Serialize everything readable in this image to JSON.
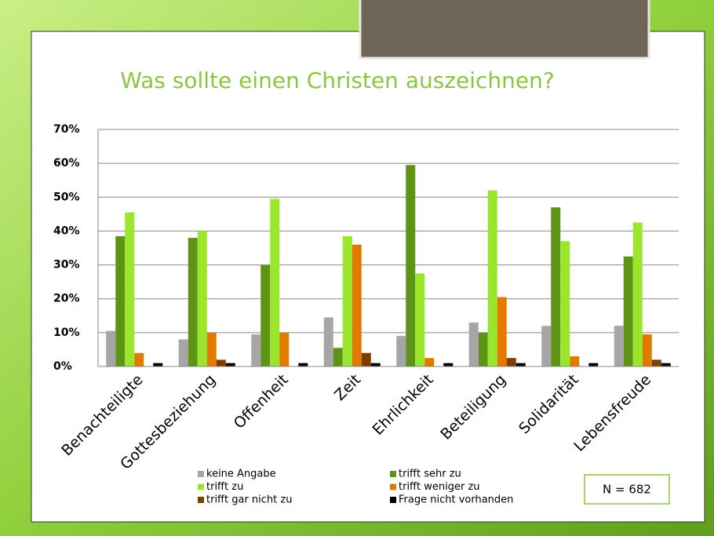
{
  "chart_data": {
    "type": "bar",
    "title": "Was sollte einen Christen auszeichnen?",
    "categories": [
      "Benachteiligte",
      "Gottesbeziehung",
      "Offenheit",
      "Zeit",
      "Ehrlichkeit",
      "Beteiligung",
      "Solidarität",
      "Lebensfreude"
    ],
    "series": [
      {
        "name": "keine Angabe",
        "color": "#a6a6a6",
        "values": [
          10.5,
          8,
          9.5,
          14.5,
          9,
          13,
          12,
          12
        ]
      },
      {
        "name": "trifft sehr zu",
        "color": "#5e9416",
        "values": [
          38.5,
          38,
          30,
          5.5,
          59.5,
          10,
          47,
          32.5
        ]
      },
      {
        "name": "trifft zu",
        "color": "#9ae62c",
        "values": [
          45.5,
          40,
          49.5,
          38.5,
          27.5,
          52,
          37,
          42.5
        ]
      },
      {
        "name": "trifft weniger zu",
        "color": "#e07b00",
        "values": [
          4,
          10,
          10,
          36,
          2.5,
          20.5,
          3,
          9.5
        ]
      },
      {
        "name": "trifft gar nicht zu",
        "color": "#7b3f00",
        "values": [
          0,
          2,
          0,
          4,
          0,
          2.5,
          0,
          2
        ]
      },
      {
        "name": "Frage nicht vorhanden",
        "color": "#000000",
        "values": [
          1,
          1,
          1,
          1,
          1,
          1,
          1,
          1
        ]
      }
    ],
    "ylim": [
      0,
      70
    ],
    "yticks": [
      {
        "value": 0,
        "label": "0%"
      },
      {
        "value": 10,
        "label": "10%"
      },
      {
        "value": 20,
        "label": "20%"
      },
      {
        "value": 30,
        "label": "30%"
      },
      {
        "value": 40,
        "label": "40%"
      },
      {
        "value": 50,
        "label": "50%"
      },
      {
        "value": 60,
        "label": "60%"
      },
      {
        "value": 70,
        "label": "70%"
      }
    ],
    "grid": true,
    "annotation": "N = 682"
  }
}
